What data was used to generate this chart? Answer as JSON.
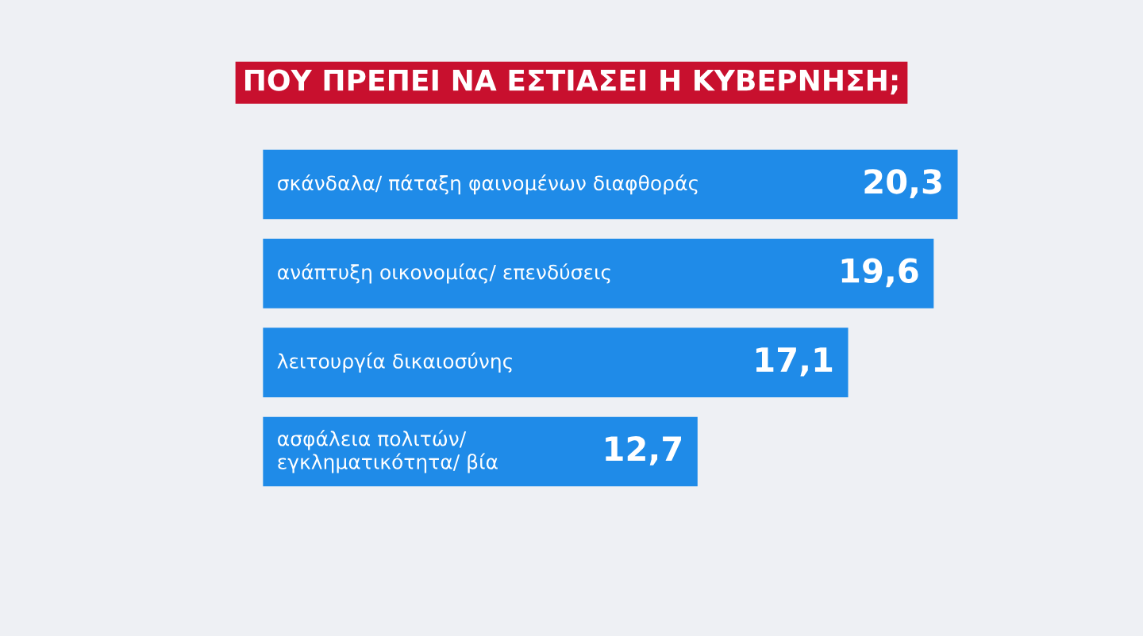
{
  "chart_data": {
    "type": "bar",
    "orientation": "horizontal",
    "title": "ΠΟΥ ΠΡΕΠΕΙ ΝΑ ΕΣΤΙΑΣΕΙ Η ΚΥΒΕΡΝΗΣΗ;",
    "categories": [
      "σκάνδαλα/ πάταξη φαινομένων διαφθοράς",
      "ανάπτυξη οικονομίας/ επενδύσεις",
      "λειτουργία δικαιοσύνης",
      "ασφάλεια πολιτών/\nεγκληματικότητα/ βία"
    ],
    "values": [
      20.3,
      19.6,
      17.1,
      12.7
    ],
    "value_labels": [
      "20,3",
      "19,6",
      "17,1",
      "12,7"
    ],
    "color": "#1f8be8"
  }
}
